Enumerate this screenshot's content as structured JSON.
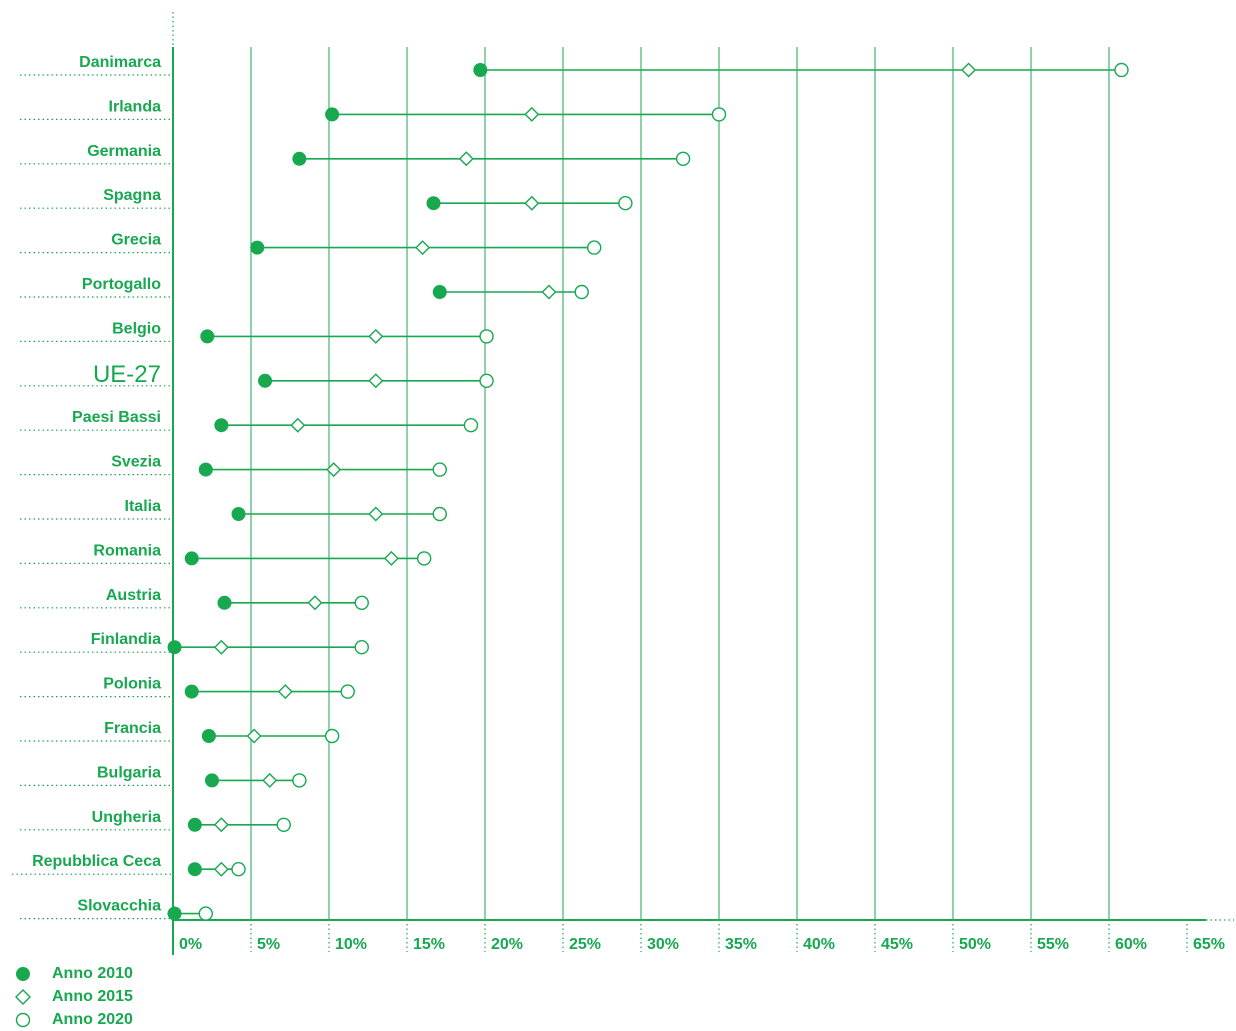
{
  "colors": {
    "accent": "#18a850"
  },
  "legend": [
    {
      "label": "Anno 2010",
      "marker": "filled-circle"
    },
    {
      "label": "Anno 2015",
      "marker": "diamond"
    },
    {
      "label": "Anno 2020",
      "marker": "open-circle"
    }
  ],
  "chart_data": {
    "type": "dot-range",
    "orientation": "horizontal",
    "categories": [
      "Danimarca",
      "Irlanda",
      "Germania",
      "Spagna",
      "Grecia",
      "Portogallo",
      "Belgio",
      "UE-27",
      "Paesi Bassi",
      "Svezia",
      "Italia",
      "Romania",
      "Austria",
      "Finlandia",
      "Polonia",
      "Francia",
      "Bulgaria",
      "Ungheria",
      "Repubblica Ceca",
      "Slovacchia"
    ],
    "highlight_category": "UE-27",
    "series": [
      {
        "name": "Anno 2010",
        "values": [
          19.7,
          10.2,
          8.1,
          16.7,
          5.4,
          17.1,
          2.2,
          5.9,
          3.1,
          2.1,
          4.2,
          1.2,
          3.3,
          0.1,
          1.2,
          2.3,
          2.5,
          1.4,
          1.4,
          0.1
        ]
      },
      {
        "name": "Anno 2015",
        "values": [
          51.0,
          23.0,
          18.8,
          23.0,
          16.0,
          24.1,
          13.0,
          13.0,
          8.0,
          10.3,
          13.0,
          14.0,
          9.1,
          3.1,
          7.2,
          5.2,
          6.2,
          3.1,
          3.1,
          0.1
        ]
      },
      {
        "name": "Anno 2020",
        "values": [
          60.8,
          35.0,
          32.7,
          29.0,
          27.0,
          26.2,
          20.1,
          20.1,
          19.1,
          17.1,
          17.1,
          16.1,
          12.1,
          12.1,
          11.2,
          10.2,
          8.1,
          7.1,
          4.2,
          2.1
        ]
      }
    ],
    "x_ticks": [
      "0%",
      "5%",
      "10%",
      "15%",
      "20%",
      "25%",
      "30%",
      "35%",
      "40%",
      "45%",
      "50%",
      "55%",
      "60%",
      "65%"
    ],
    "xlim": [
      0,
      65
    ],
    "grid": true
  }
}
